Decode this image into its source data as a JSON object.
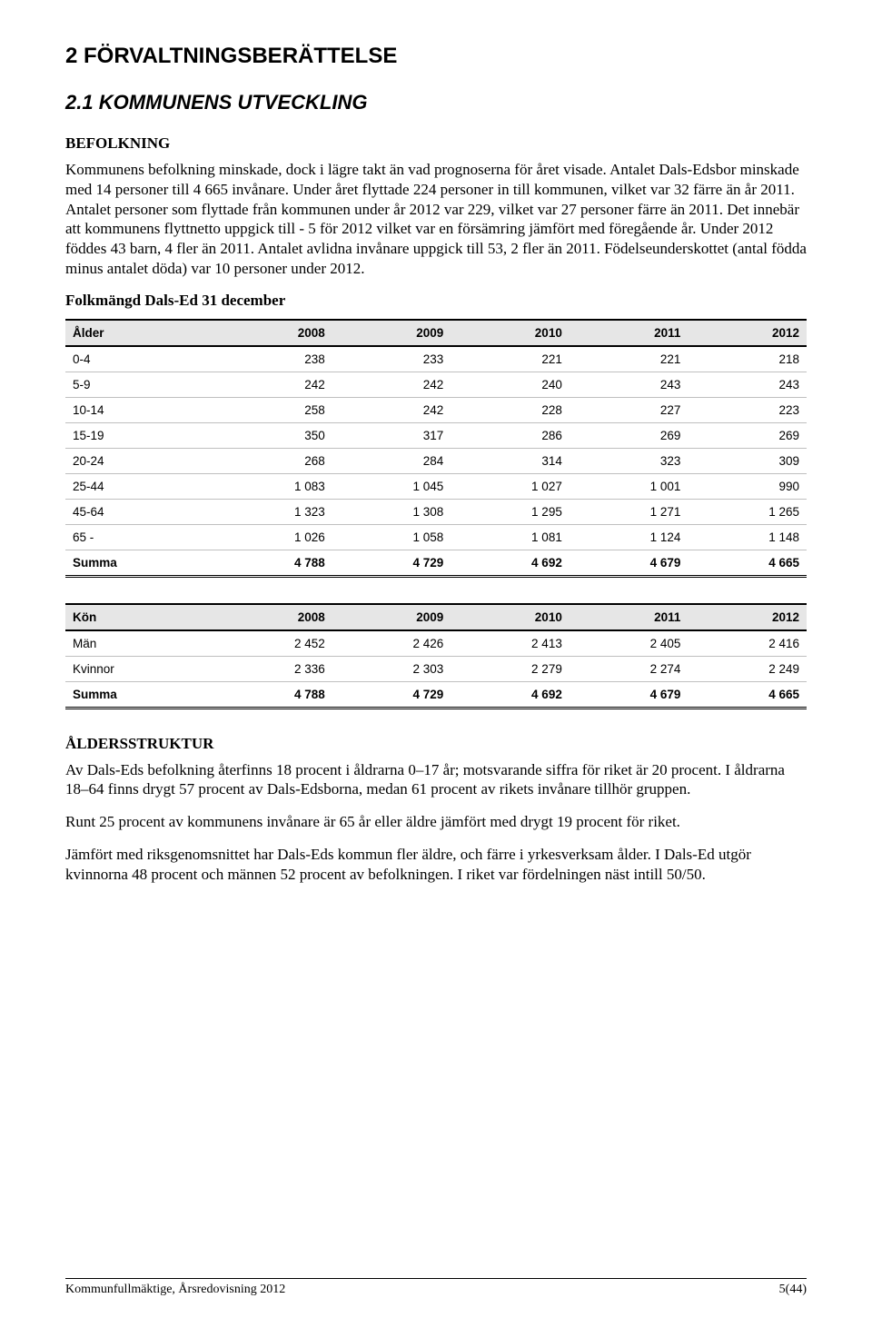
{
  "section_number_title": "2  FÖRVALTNINGSBERÄTTELSE",
  "subsection_title": "2.1 KOMMUNENS UTVECKLING",
  "headings": {
    "befolkning": "BEFOLKNING",
    "aldersstruktur": "ÅLDERSSTRUKTUR"
  },
  "paragraphs": {
    "p1": "Kommunens befolkning minskade, dock i lägre takt än vad prognoserna för året visade. Antalet Dals-Edsbor minskade med 14 personer till 4 665 invånare. Under året flyttade 224 personer in till kommunen, vilket var 32 färre än år 2011. Antalet personer som flyttade från kommunen under år 2012 var 229, vilket var 27 personer färre än 2011. Det innebär att kommunens flyttnetto uppgick till - 5 för 2012 vilket var en försämring jämfört med föregående år. Under 2012 föddes 43 barn, 4 fler än 2011. Antalet avlidna invånare uppgick till 53, 2 fler än 2011. Födelseunderskottet (antal födda minus antalet döda) var 10 personer under 2012.",
    "p2": "Av Dals-Eds befolkning återfinns 18 procent i åldrarna 0–17 år; motsvarande siffra för riket är 20 procent. I åldrarna 18–64 finns drygt 57 procent av Dals-Edsborna, medan 61 procent av rikets invånare tillhör gruppen.",
    "p3": "Runt 25 procent av kommunens invånare är 65 år eller äldre jämfört med drygt 19 procent för riket.",
    "p4": "Jämfört med riksgenomsnittet har Dals-Eds kommun fler äldre, och färre i yrkesverksam ålder. I Dals-Ed utgör kvinnorna 48 procent och männen 52 procent av befolkningen. I riket var fördelningen näst intill 50/50."
  },
  "table_title": "Folkmängd Dals-Ed 31 december",
  "table_age": {
    "columns": [
      "Ålder",
      "2008",
      "2009",
      "2010",
      "2011",
      "2012"
    ],
    "rows": [
      [
        "0-4",
        "238",
        "233",
        "221",
        "221",
        "218"
      ],
      [
        "5-9",
        "242",
        "242",
        "240",
        "243",
        "243"
      ],
      [
        "10-14",
        "258",
        "242",
        "228",
        "227",
        "223"
      ],
      [
        "15-19",
        "350",
        "317",
        "286",
        "269",
        "269"
      ],
      [
        "20-24",
        "268",
        "284",
        "314",
        "323",
        "309"
      ],
      [
        "25-44",
        "1 083",
        "1 045",
        "1 027",
        "1 001",
        "990"
      ],
      [
        "45-64",
        "1 323",
        "1 308",
        "1 295",
        "1 271",
        "1 265"
      ],
      [
        "65 -",
        "1 026",
        "1 058",
        "1 081",
        "1 124",
        "1 148"
      ]
    ],
    "sum_row": [
      "Summa",
      "4 788",
      "4 729",
      "4 692",
      "4 679",
      "4 665"
    ],
    "header_bg": "#e6e6e6",
    "row_border": "#bfbfbf",
    "col_widths_pct": [
      20,
      16,
      16,
      16,
      16,
      16
    ]
  },
  "table_gender": {
    "columns": [
      "Kön",
      "2008",
      "2009",
      "2010",
      "2011",
      "2012"
    ],
    "rows": [
      [
        "Män",
        "2 452",
        "2 426",
        "2 413",
        "2 405",
        "2 416"
      ],
      [
        "Kvinnor",
        "2 336",
        "2 303",
        "2 279",
        "2 274",
        "2 249"
      ]
    ],
    "sum_row": [
      "Summa",
      "4 788",
      "4 729",
      "4 692",
      "4 679",
      "4 665"
    ],
    "header_bg": "#e6e6e6",
    "row_border": "#bfbfbf",
    "col_widths_pct": [
      20,
      16,
      16,
      16,
      16,
      16
    ]
  },
  "footer": {
    "left": "Kommunfullmäktige, Årsredovisning 2012",
    "right": "5(44)"
  }
}
